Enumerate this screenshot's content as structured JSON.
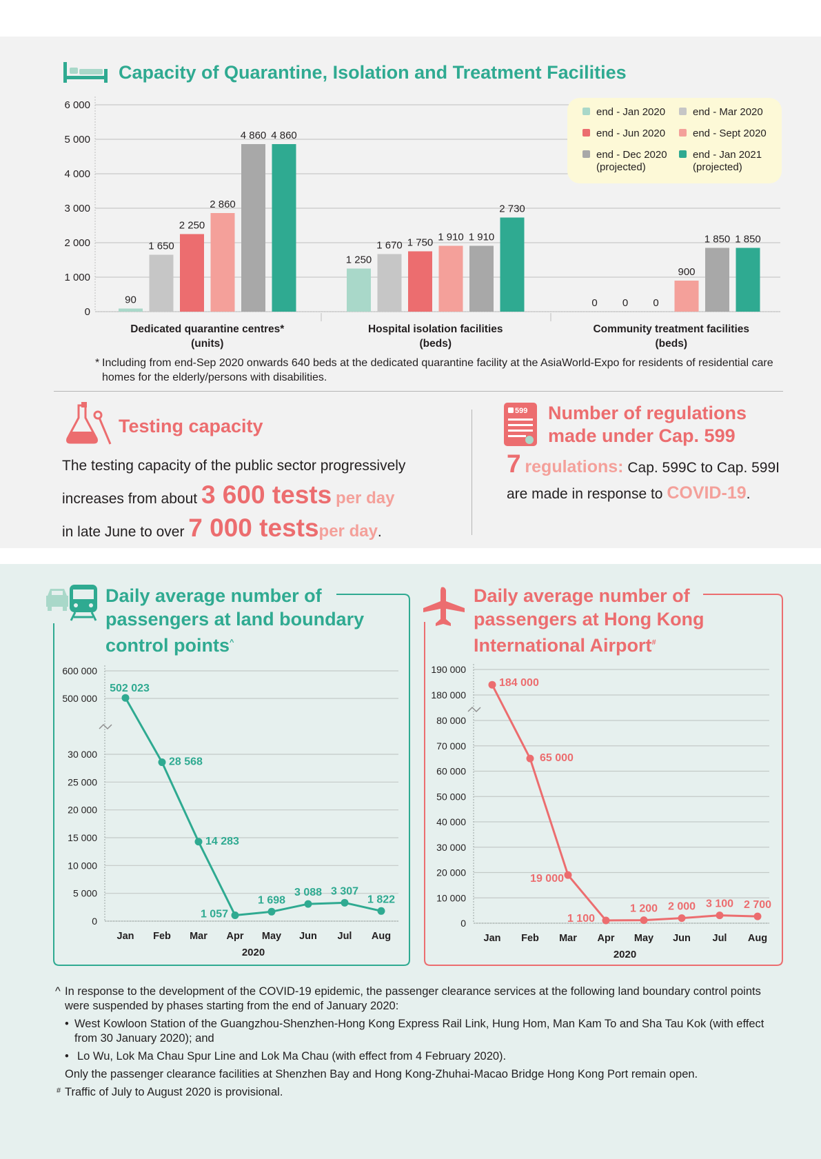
{
  "colors": {
    "teal": "#2faa91",
    "coral": "#ec6d6f",
    "light_teal": "#a9d8c9",
    "light_grey": "#c6c6c6",
    "pink": "#f4a09a",
    "grey": "#a8a8a8",
    "legend_bg": "#fdf9d7"
  },
  "capacity": {
    "title": "Capacity of Quarantine, Isolation and Treatment Facilities",
    "footnote_marker": "*",
    "footnote": "Including from end-Sep 2020 onwards 640 beds at the dedicated quarantine facility at the AsiaWorld-Expo for residents of residential care homes for the elderly/persons with disabilities."
  },
  "testing": {
    "title": "Testing capacity",
    "line1": "The testing capacity of the public sector progressively",
    "line2_pre": "increases from about",
    "num1": "3 600 tests",
    "unit1": "per day",
    "line3_pre": "in late June to over",
    "num2": "7 000 tests",
    "unit2": "per day",
    "period": "."
  },
  "regulations": {
    "title": "Number of regulations made under Cap. 599",
    "icon_label": "599",
    "num": "7",
    "label": "regulations:",
    "text1": "Cap. 599C to Cap. 599I are made in response to",
    "covid": "COVID-19",
    "period": "."
  },
  "land": {
    "title": "Daily average number of passengers at land boundary control points",
    "title_marker": "^"
  },
  "airport": {
    "title": "Daily average number of passengers at Hong Kong International Airport",
    "title_marker": "#"
  },
  "notes": {
    "caret_marker": "^",
    "caret_text": "In response to the development of the COVID-19 epidemic, the passenger clearance services at the following land boundary control points were suspended by phases starting from the end of January 2020:",
    "bullets": [
      "West Kowloon Station of the Guangzhou-Shenzhen-Hong Kong Express Rail Link, Hung Hom, Man Kam To and Sha Tau Kok (with effect from 30 January 2020); and",
      "Lo Wu, Lok Ma Chau Spur Line and Lok Ma Chau (with effect from 4 February 2020)."
    ],
    "open_text": "Only the passenger clearance facilities at Shenzhen Bay and Hong Kong-Zhuhai-Macao Bridge Hong Kong Port remain open.",
    "hash_marker": "#",
    "hash_text": "Traffic of July to August 2020 is provisional."
  },
  "chart_data": [
    {
      "type": "bar",
      "title": "Capacity of Quarantine, Isolation and Treatment Facilities",
      "ylim": [
        0,
        6000
      ],
      "yticks": [
        0,
        1000,
        2000,
        3000,
        4000,
        5000,
        6000
      ],
      "ytick_labels": [
        "0",
        "1 000",
        "2 000",
        "3 000",
        "4 000",
        "5 000",
        "6 000"
      ],
      "categories": [
        [
          "Dedicated quarantine centres*",
          "(units)"
        ],
        [
          "Hospital isolation facilities",
          "(beds)"
        ],
        [
          "Community treatment facilities",
          "(beds)"
        ]
      ],
      "series": [
        {
          "name": "end - Jan 2020",
          "color": "#a9d8c9",
          "values": [
            90,
            1250,
            0
          ],
          "labels": [
            "90",
            "1 250",
            "0"
          ]
        },
        {
          "name": "end - Mar 2020",
          "color": "#c6c6c6",
          "values": [
            1650,
            1670,
            0
          ],
          "labels": [
            "1 650",
            "1 670",
            "0"
          ]
        },
        {
          "name": "end - Jun 2020",
          "color": "#ec6d6f",
          "values": [
            2250,
            1750,
            0
          ],
          "labels": [
            "2 250",
            "1 750",
            "0"
          ]
        },
        {
          "name": "end - Sept 2020",
          "color": "#f4a09a",
          "values": [
            2860,
            1910,
            900
          ],
          "labels": [
            "2 860",
            "1 910",
            "900"
          ]
        },
        {
          "name": "end - Dec 2020 (projected)",
          "color": "#a8a8a8",
          "values": [
            4860,
            1910,
            1850
          ],
          "labels": [
            "4 860",
            "1 910",
            "1 850"
          ]
        },
        {
          "name": "end - Jan 2021 (projected)",
          "color": "#2faa91",
          "values": [
            4860,
            2730,
            1850
          ],
          "labels": [
            "4 860",
            "2 730",
            "1 850"
          ]
        }
      ],
      "legend_rows": [
        [
          {
            "series": 0,
            "text": [
              "end - Jan 2020"
            ]
          },
          {
            "series": 1,
            "text": [
              "end - Mar 2020"
            ]
          }
        ],
        [
          {
            "series": 2,
            "text": [
              "end - Jun 2020"
            ]
          },
          {
            "series": 3,
            "text": [
              "end - Sept 2020"
            ]
          }
        ],
        [
          {
            "series": 4,
            "text": [
              "end - Dec 2020",
              "(projected)"
            ]
          },
          {
            "series": 5,
            "text": [
              "end - Jan 2021",
              "(projected)"
            ]
          }
        ]
      ],
      "legend_position": "top-right",
      "grid": true
    },
    {
      "type": "line",
      "title": "Daily average number of passengers at land boundary control points^",
      "xlabel": "2020",
      "x": [
        "Jan",
        "Feb",
        "Mar",
        "Apr",
        "May",
        "Jun",
        "Jul",
        "Aug"
      ],
      "y": [
        502023,
        28568,
        14283,
        1057,
        1698,
        3088,
        3307,
        1822
      ],
      "labels": [
        "502 023",
        "28 568",
        "14 283",
        "1 057",
        "1 698",
        "3 088",
        "3 307",
        "1 822"
      ],
      "axis_break": true,
      "lower_segment": {
        "ylim": [
          0,
          30000
        ],
        "ticks": [
          0,
          5000,
          10000,
          15000,
          20000,
          25000,
          30000
        ],
        "tick_labels": [
          "0",
          "5 000",
          "10 000",
          "15 000",
          "20 000",
          "25 000",
          "30 000"
        ]
      },
      "upper_segment": {
        "ylim": [
          500000,
          600000
        ],
        "ticks": [
          500000,
          600000
        ],
        "tick_labels": [
          "500 000",
          "600 000"
        ]
      },
      "color": "#2faa91",
      "grid": true
    },
    {
      "type": "line",
      "title": "Daily average number of passengers at Hong Kong International Airport#",
      "xlabel": "2020",
      "x": [
        "Jan",
        "Feb",
        "Mar",
        "Apr",
        "May",
        "Jun",
        "Jul",
        "Aug"
      ],
      "y": [
        184000,
        65000,
        19000,
        1100,
        1200,
        2000,
        3100,
        2700
      ],
      "labels": [
        "184 000",
        "65 000",
        "19 000",
        "1 100",
        "1 200",
        "2 000",
        "3 100",
        "2 700"
      ],
      "axis_break": true,
      "lower_segment": {
        "ylim": [
          0,
          80000
        ],
        "ticks": [
          0,
          10000,
          20000,
          30000,
          40000,
          50000,
          60000,
          70000,
          80000
        ],
        "tick_labels": [
          "0",
          "10 000",
          "20 000",
          "30 000",
          "40 000",
          "50 000",
          "60 000",
          "70 000",
          "80 000"
        ]
      },
      "upper_segment": {
        "ylim": [
          180000,
          190000
        ],
        "ticks": [
          180000,
          190000
        ],
        "tick_labels": [
          "180 000",
          "190 000"
        ]
      },
      "color": "#ec6d6f",
      "grid": true
    }
  ]
}
